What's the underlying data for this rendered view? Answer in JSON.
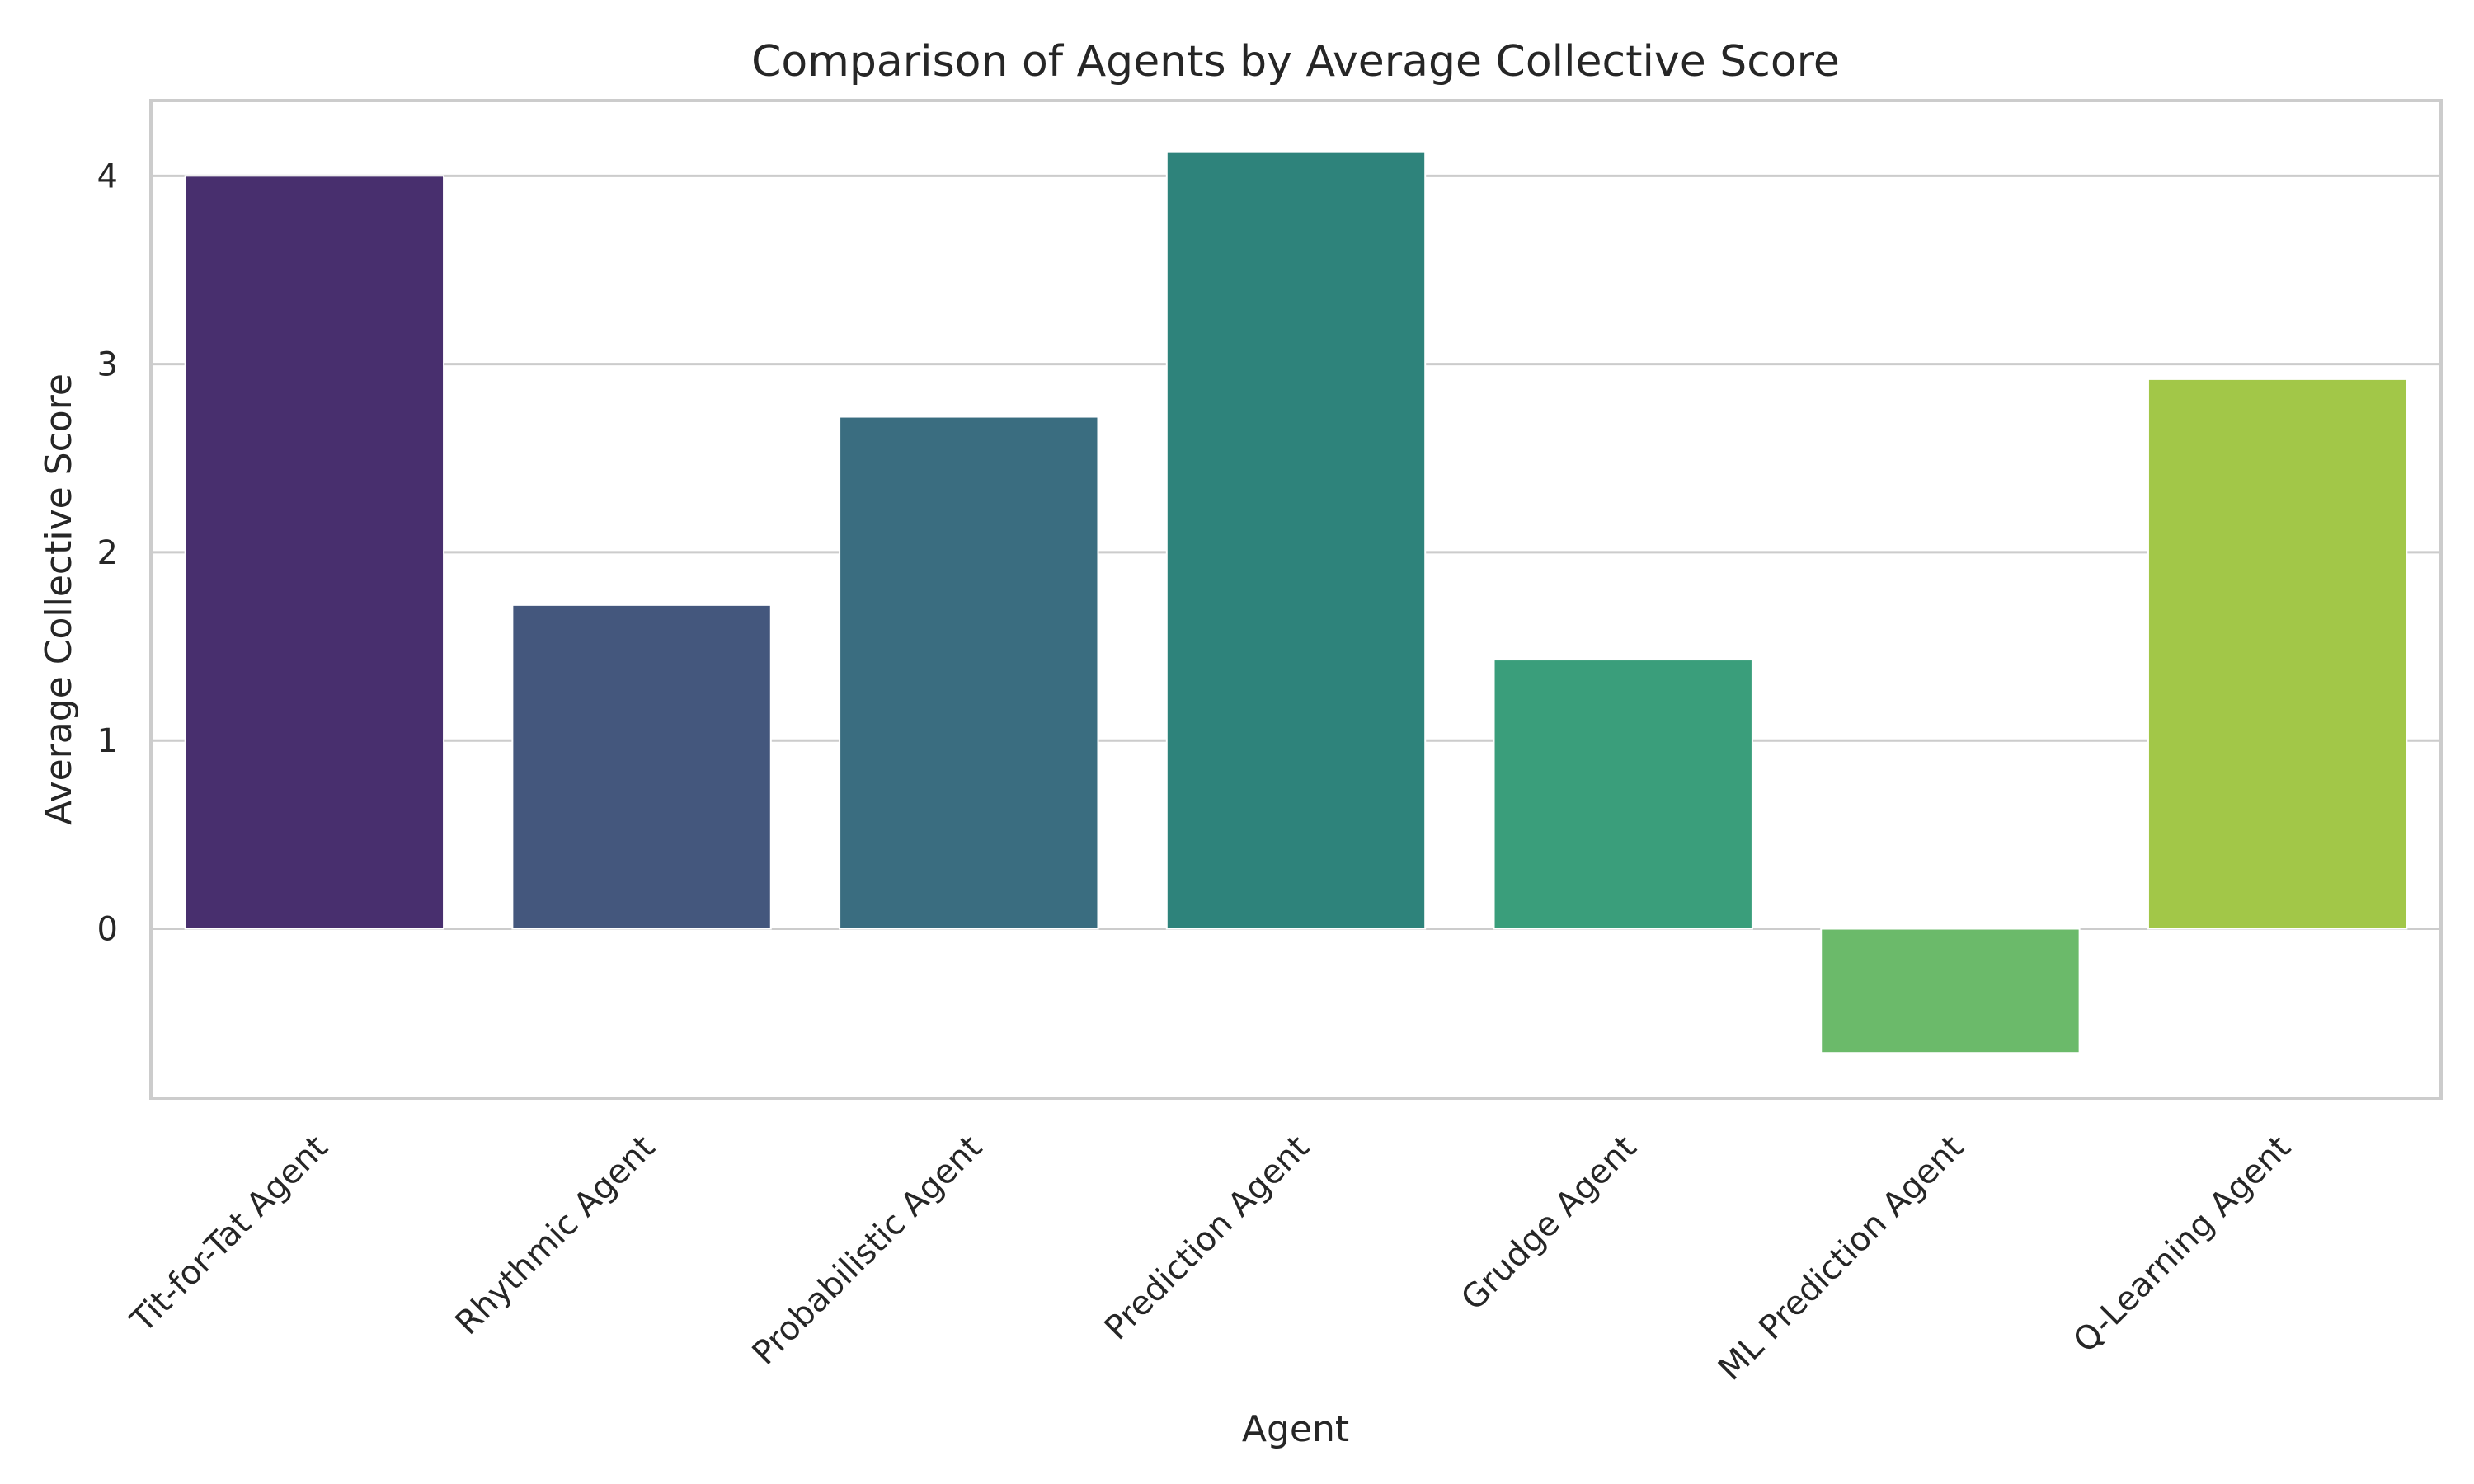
{
  "chart_data": {
    "type": "bar",
    "title": "Comparison of Agents by Average Collective Score",
    "xlabel": "Agent",
    "ylabel": "Average Collective Score",
    "categories": [
      "Tit-for-Tat Agent",
      "Rhythmic Agent",
      "Probabilistic Agent",
      "Prediction Agent",
      "Grudge Agent",
      "ML Prediction Agent",
      "Q-Learning Agent"
    ],
    "values": [
      4.0,
      1.72,
      2.72,
      4.13,
      1.43,
      -0.66,
      2.92
    ],
    "colors": [
      "#482f6e",
      "#44577d",
      "#3a6d80",
      "#2e837b",
      "#3a9e7b",
      "#6bba6a",
      "#a2c748"
    ],
    "ylim": [
      -0.9,
      4.4
    ],
    "yticks": [
      0,
      1,
      2,
      3,
      4
    ],
    "grid": true,
    "legend": "none"
  }
}
